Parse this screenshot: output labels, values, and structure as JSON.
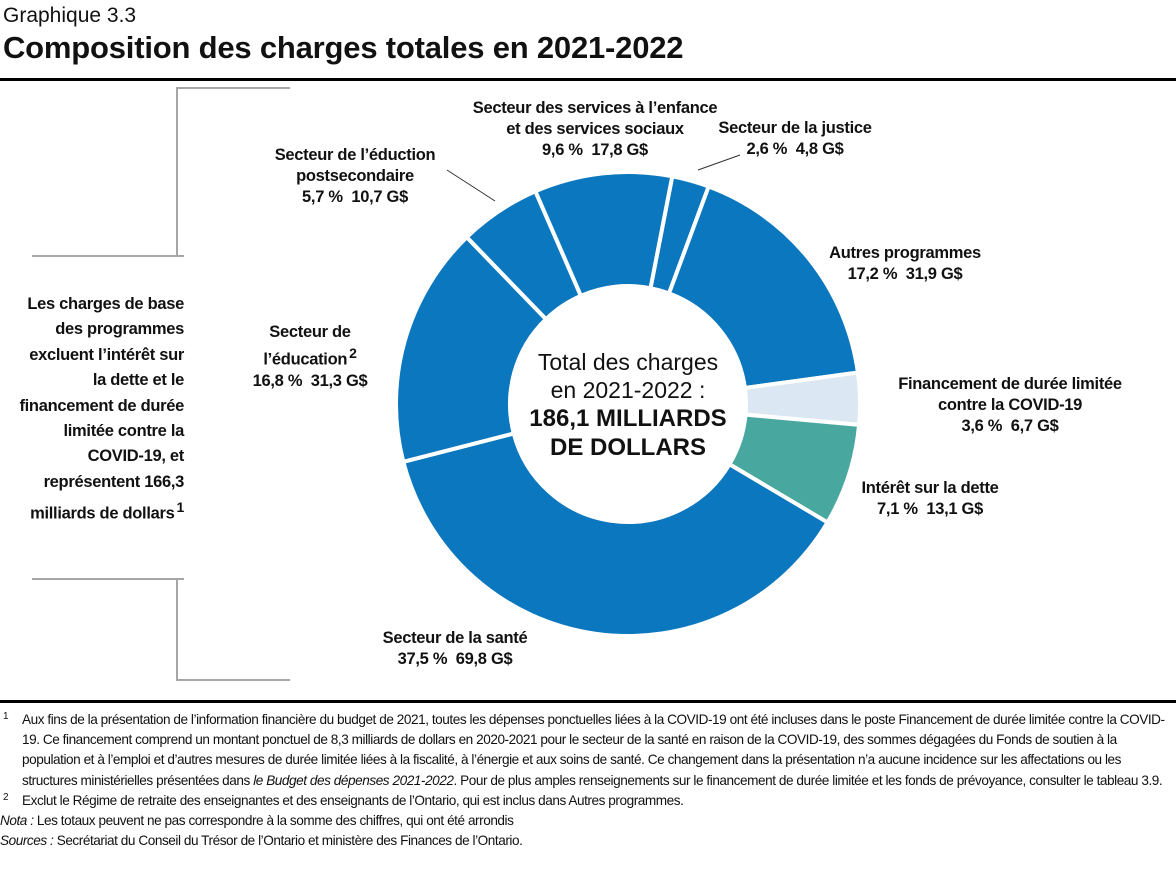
{
  "header": {
    "subtitle": "Graphique 3.3",
    "title": "Composition des charges totales en 2021-2022"
  },
  "side_note": {
    "text": "Les charges de base des programmes excluent l’intérêt sur la dette et le financement de durée limitée contre la COVID-19,  et représentent 166,3 milliards de dollars",
    "sup": "1"
  },
  "chart_data": {
    "type": "pie",
    "variant": "donut",
    "title": "Composition des charges totales en 2021-2022",
    "center_label": {
      "line1": "Total des charges",
      "line2": "en 2021-2022 :",
      "line3": "186,1 MILLIARDS",
      "line4": "DE DOLLARS"
    },
    "units": "G$",
    "slices": [
      {
        "name": "Secteur de la justice",
        "name_lines": [
          "Secteur de la justice"
        ],
        "percent": 2.6,
        "value": 4.8,
        "pct_label": "2,6 %",
        "value_label": "4,8 G$",
        "color": "#0a77bf"
      },
      {
        "name": "Autres programmes",
        "name_lines": [
          "Autres programmes"
        ],
        "percent": 17.2,
        "value": 31.9,
        "pct_label": "17,2 %",
        "value_label": "31,9 G$",
        "color": "#0a77bf"
      },
      {
        "name": "Financement de durée limitée contre la COVID-19",
        "name_lines": [
          "Financement de durée limitée",
          "contre la COVID-19"
        ],
        "percent": 3.6,
        "value": 6.7,
        "pct_label": "3,6 %",
        "value_label": "6,7 G$",
        "color": "#dbe7f3"
      },
      {
        "name": "Intérêt sur la dette",
        "name_lines": [
          "Intérêt sur la dette"
        ],
        "percent": 7.1,
        "value": 13.1,
        "pct_label": "7,1 %",
        "value_label": "13,1 G$",
        "color": "#48a89f"
      },
      {
        "name": "Secteur de la santé",
        "name_lines": [
          "Secteur de la santé"
        ],
        "percent": 37.5,
        "value": 69.8,
        "pct_label": "37,5 %",
        "value_label": "69,8 G$",
        "color": "#0a77bf"
      },
      {
        "name": "Secteur de l’éducation",
        "name_lines": [
          "Secteur de",
          "l’éducation"
        ],
        "sup": "2",
        "percent": 16.8,
        "value": 31.3,
        "pct_label": "16,8 %",
        "value_label": "31,3 G$",
        "color": "#0a77bf"
      },
      {
        "name": "Secteur de l’éduction postsecondaire",
        "name_lines": [
          "Secteur de l’éduction",
          "postsecondaire"
        ],
        "percent": 5.7,
        "value": 10.7,
        "pct_label": "5,7 %",
        "value_label": "10,7 G$",
        "color": "#0a77bf"
      },
      {
        "name": "Secteur des services à l’enfance et des services sociaux",
        "name_lines": [
          "Secteur des services à l’enfance",
          "et des services sociaux"
        ],
        "percent": 9.6,
        "value": 17.8,
        "pct_label": "9,6 %",
        "value_label": "17,8 G$",
        "color": "#0a77bf"
      }
    ]
  },
  "footnotes": {
    "fn1_num": "1",
    "fn1_a": "Aux fins de la présentation de l’information financière du budget de 2021, toutes les dépenses ponctuelles liées à la COVID-19 ont été incluses dans le poste Financement de durée limitée contre la COVID-19. Ce financement comprend un montant ponctuel de 8,3 milliards de dollars en 2020-2021 pour le secteur de la santé en raison de la COVID-19, des sommes dégagées du Fonds de soutien à la population et à l’emploi et d’autres mesures de durée limitée liées à la fiscalité, à l’énergie et aux soins de santé. Ce changement dans la présentation n’a aucune incidence sur les affectations ou les structures ministérielles présentées dans ",
    "fn1_italic": "le Budget des dépenses 2021-2022",
    "fn1_b": ". Pour de plus amples renseignements sur le financement de durée limitée et les fonds de prévoyance, consulter le tableau 3.9.",
    "fn2_num": "2",
    "fn2": "Exclut le Régime de retraite  des enseignantes et des enseignants de l’Ontario, qui est inclus dans Autres programmes.",
    "nota_label": "Nota :",
    "nota": " Les totaux peuvent ne pas correspondre à la somme des chiffres,  qui ont été  arrondis",
    "sources_label": "Sources :",
    "sources": " Secrétariat du Conseil du Trésor de l’Ontario et ministère des Finances de l’Ontario."
  }
}
